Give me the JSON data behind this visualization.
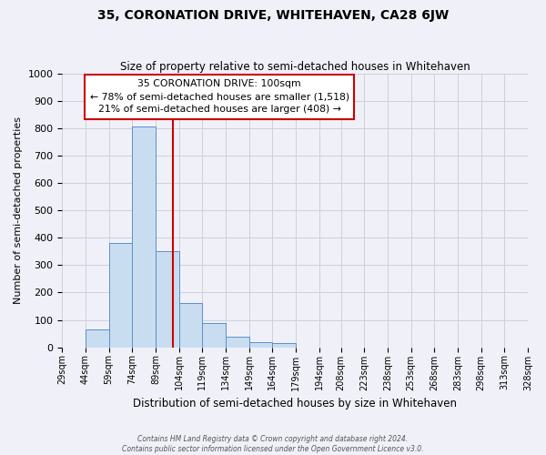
{
  "title": "35, CORONATION DRIVE, WHITEHAVEN, CA28 6JW",
  "subtitle": "Size of property relative to semi-detached houses in Whitehaven",
  "xlabel": "Distribution of semi-detached houses by size in Whitehaven",
  "ylabel": "Number of semi-detached properties",
  "bar_values": [
    0,
    65,
    380,
    805,
    350,
    160,
    90,
    40,
    20,
    15,
    0,
    0,
    0,
    0,
    0,
    0,
    0,
    0,
    0,
    0
  ],
  "bin_labels": [
    "29sqm",
    "44sqm",
    "59sqm",
    "74sqm",
    "89sqm",
    "104sqm",
    "119sqm",
    "134sqm",
    "149sqm",
    "164sqm",
    "179sqm",
    "194sqm",
    "208sqm",
    "223sqm",
    "238sqm",
    "253sqm",
    "268sqm",
    "283sqm",
    "298sqm",
    "313sqm",
    "328sqm"
  ],
  "bin_starts": [
    29,
    44,
    59,
    74,
    89,
    104,
    119,
    134,
    149,
    164,
    179,
    194,
    208,
    223,
    238,
    253,
    268,
    283,
    298,
    313
  ],
  "bin_width": 15,
  "xlim_left": 29,
  "xlim_right": 328,
  "ylim": [
    0,
    1000
  ],
  "yticks": [
    0,
    100,
    200,
    300,
    400,
    500,
    600,
    700,
    800,
    900,
    1000
  ],
  "xtick_positions": [
    29,
    44,
    59,
    74,
    89,
    104,
    119,
    134,
    149,
    164,
    179,
    194,
    208,
    223,
    238,
    253,
    268,
    283,
    298,
    313,
    328
  ],
  "bar_color": "#c9ddf0",
  "bar_edge_color": "#5b8fc9",
  "property_line_x": 100,
  "property_line_color": "#cc0000",
  "annotation_title": "35 CORONATION DRIVE: 100sqm",
  "annotation_line1": "← 78% of semi-detached houses are smaller (1,518)",
  "annotation_line2": "21% of semi-detached houses are larger (408) →",
  "annotation_box_color": "white",
  "annotation_box_edge_color": "#cc0000",
  "footer_line1": "Contains HM Land Registry data © Crown copyright and database right 2024.",
  "footer_line2": "Contains public sector information licensed under the Open Government Licence v3.0.",
  "background_color": "#f0f0f8",
  "grid_color": "#d0d0d8",
  "fig_width": 6.0,
  "fig_height": 5.0
}
